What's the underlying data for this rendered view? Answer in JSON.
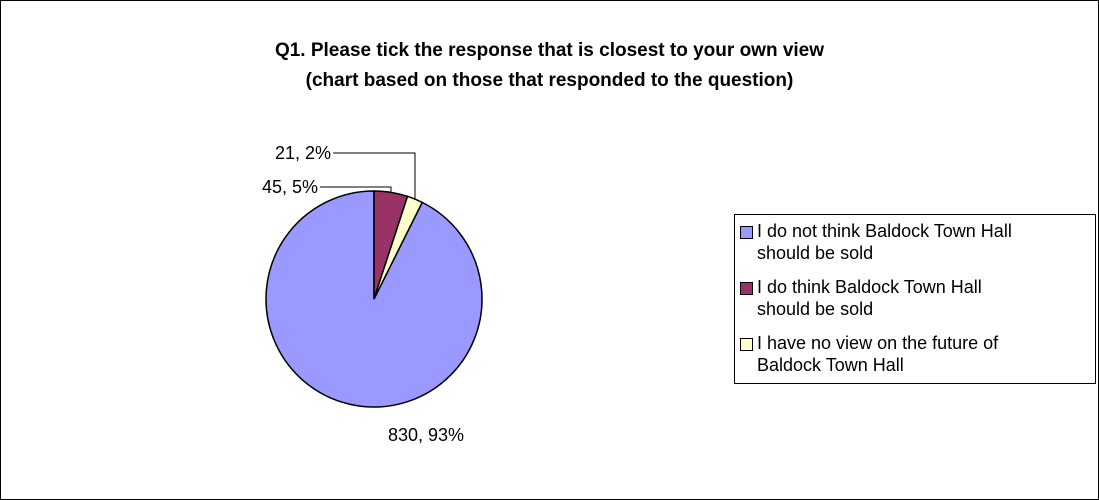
{
  "chart_data": {
    "type": "pie",
    "title_lines": [
      "Q1. Please tick the response that is closest to your own view",
      "(chart based on those that responded to the question)"
    ],
    "slices": [
      {
        "name": "I do not think Baldock Town Hall should be sold",
        "legend_lines": [
          "I do not think Baldock Town Hall",
          "should be sold"
        ],
        "value": 830,
        "percent": 93,
        "label": "830, 93%",
        "color": "#9999ff"
      },
      {
        "name": "I do think Baldock Town Hall should be sold",
        "legend_lines": [
          "I do think Baldock Town Hall",
          "should be sold"
        ],
        "value": 45,
        "percent": 5,
        "label": "45, 5%",
        "color": "#993366"
      },
      {
        "name": "I have no view on the future of Baldock Town Hall",
        "legend_lines": [
          "I have no view on the future of",
          "Baldock Town Hall"
        ],
        "value": 21,
        "percent": 2,
        "label": "21, 2%",
        "color": "#ffffcc"
      }
    ],
    "legend_position": "right"
  }
}
